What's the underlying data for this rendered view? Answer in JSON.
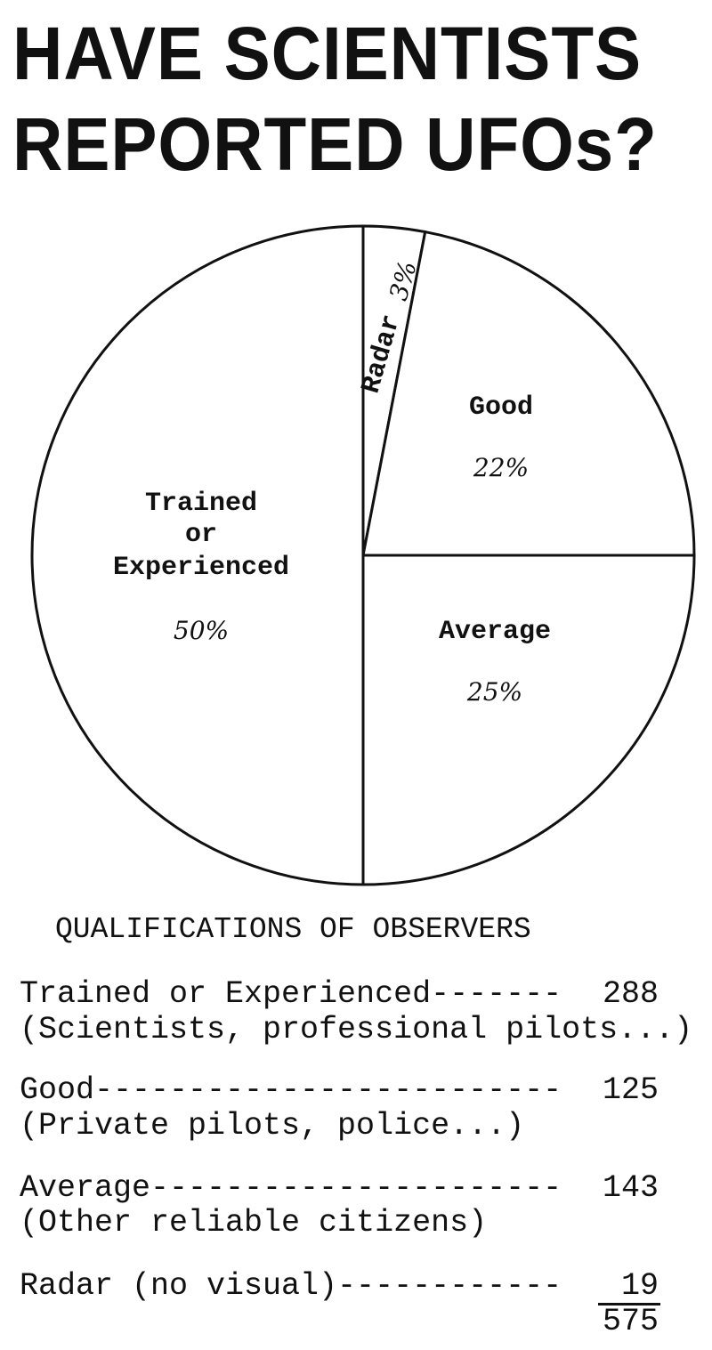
{
  "title": {
    "line1": "HAVE SCIENTISTS",
    "line2": "REPORTED UFOs?"
  },
  "chart_data": {
    "type": "pie",
    "title": "HAVE SCIENTISTS REPORTED UFOs?",
    "start": "top",
    "direction": "clockwise",
    "slices": [
      {
        "label": "Radar",
        "percent_label": "3%",
        "value": 3
      },
      {
        "label": "Good",
        "percent_label": "22%",
        "value": 22
      },
      {
        "label": "Average",
        "percent_label": "25%",
        "value": 25
      },
      {
        "label": "Trained or Experienced",
        "label_lines": [
          "Trained",
          "or",
          "Experienced"
        ],
        "percent_label": "50%",
        "value": 50
      }
    ],
    "fill": "#ffffff",
    "stroke": "#111111"
  },
  "legend": {
    "heading": "QUALIFICATIONS OF OBSERVERS",
    "items": [
      {
        "line": "Trained or Experienced-------",
        "count": "288",
        "note": "(Scientists, professional pilots...)"
      },
      {
        "line": "Good-------------------------",
        "count": "125",
        "note": "(Private pilots, police...)"
      },
      {
        "line": "Average----------------------",
        "count": "143",
        "note": "(Other reliable citizens)"
      },
      {
        "line": "Radar (no visual)------------",
        "count": "19",
        "note": ""
      }
    ],
    "total": "575"
  }
}
